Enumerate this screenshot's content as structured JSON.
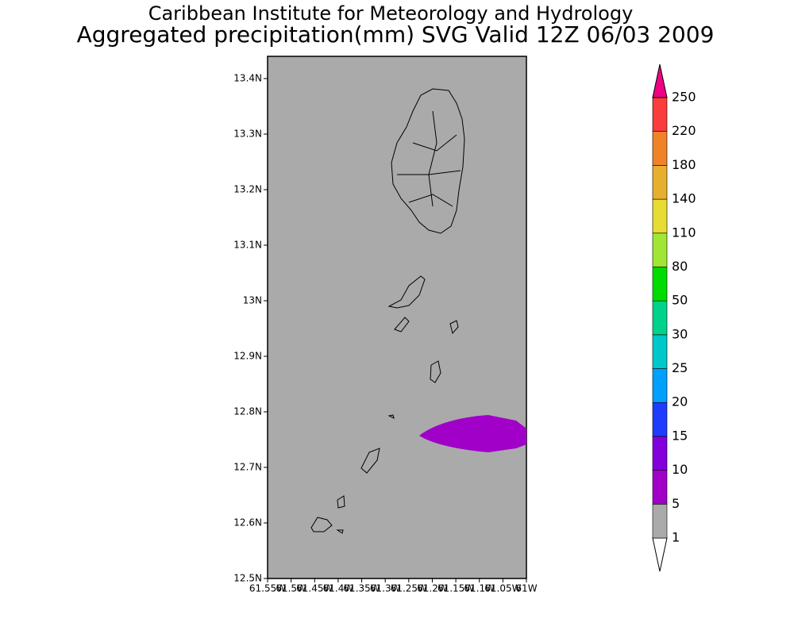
{
  "chart_data": {
    "type": "map",
    "title": "Caribbean Institute for Meteorology and Hydrology",
    "subtitle": "Aggregated precipitation(mm) SVG Valid 12Z 06/03 2009",
    "xlim": [
      -61.55,
      -61
    ],
    "ylim": [
      12.5,
      13.44
    ],
    "xticks": [
      {
        "value": -61.55,
        "label": "61.55W"
      },
      {
        "value": -61.5,
        "label": "61.5W"
      },
      {
        "value": -61.45,
        "label": "61.45W"
      },
      {
        "value": -61.4,
        "label": "61.4W"
      },
      {
        "value": -61.35,
        "label": "61.35W"
      },
      {
        "value": -61.3,
        "label": "61.3W"
      },
      {
        "value": -61.25,
        "label": "61.25W"
      },
      {
        "value": -61.2,
        "label": "61.2W"
      },
      {
        "value": -61.15,
        "label": "61.15W"
      },
      {
        "value": -61.1,
        "label": "61.1W"
      },
      {
        "value": -61.05,
        "label": "61.05W"
      },
      {
        "value": -61,
        "label": "61W"
      }
    ],
    "yticks": [
      {
        "value": 12.5,
        "label": "12.5N"
      },
      {
        "value": 12.6,
        "label": "12.6N"
      },
      {
        "value": 12.7,
        "label": "12.7N"
      },
      {
        "value": 12.8,
        "label": "12.8N"
      },
      {
        "value": 12.9,
        "label": "12.9N"
      },
      {
        "value": 13,
        "label": "13N"
      },
      {
        "value": 13.1,
        "label": "13.1N"
      },
      {
        "value": 13.2,
        "label": "13.2N"
      },
      {
        "value": 13.3,
        "label": "13.3N"
      },
      {
        "value": 13.4,
        "label": "13.4N"
      }
    ],
    "background_color": "#aaaaaa",
    "colorbar": {
      "levels": [
        1,
        5,
        10,
        15,
        20,
        25,
        30,
        50,
        80,
        110,
        140,
        180,
        220,
        250
      ],
      "colors": [
        "#ffffff",
        "#aaaaaa",
        "#a000c8",
        "#8200dc",
        "#1e3cff",
        "#00a0ff",
        "#00c8c8",
        "#00d28c",
        "#00dc00",
        "#a0e632",
        "#e6dc32",
        "#e6af2d",
        "#f08228",
        "#fa3c3c",
        "#f00082"
      ]
    }
  }
}
